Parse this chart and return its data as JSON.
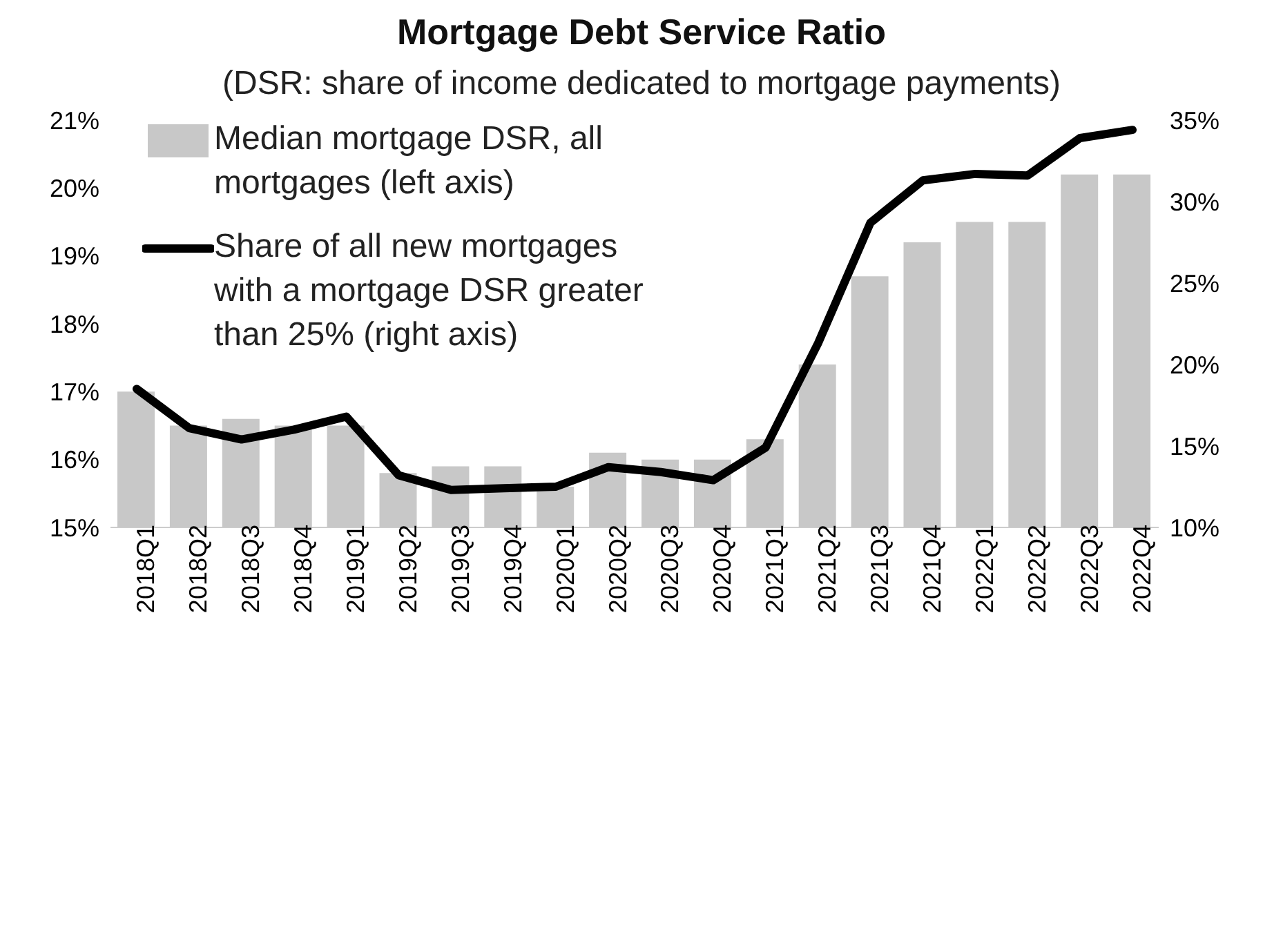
{
  "chart_data": {
    "type": "bar",
    "title": "Mortgage Debt Service Ratio",
    "subtitle": "(DSR: share of income dedicated to mortgage payments)",
    "categories": [
      "2018Q1",
      "2018Q2",
      "2018Q3",
      "2018Q4",
      "2019Q1",
      "2019Q2",
      "2019Q3",
      "2019Q4",
      "2020Q1",
      "2020Q2",
      "2020Q3",
      "2020Q4",
      "2021Q1",
      "2021Q2",
      "2021Q3",
      "2021Q4",
      "2022Q1",
      "2022Q2",
      "2022Q3",
      "2022Q4"
    ],
    "series": [
      {
        "name": "Median mortgage DSR, all mortgages (left axis)",
        "color": "#c8c8c8",
        "values": [
          17.0,
          16.5,
          16.6,
          16.5,
          16.5,
          15.8,
          15.9,
          15.9,
          15.6,
          16.1,
          16.0,
          16.0,
          16.3,
          17.4,
          18.7,
          19.2,
          19.5,
          19.5,
          20.2,
          20.2
        ]
      },
      {
        "name": "Share of all new mortgages with a mortgage DSR greater than 25% (right axis)",
        "type": "line",
        "axis": "y2",
        "color": "#000000",
        "values": [
          18.5,
          16.1,
          15.4,
          16.0,
          16.8,
          13.2,
          12.3,
          12.4,
          12.5,
          13.7,
          13.4,
          12.9,
          14.9,
          21.3,
          28.7,
          31.3,
          31.7,
          31.6,
          33.9,
          34.4
        ]
      }
    ],
    "ylim": [
      15,
      21
    ],
    "yticks": [
      {
        "value": 15,
        "label": "15%"
      },
      {
        "value": 16,
        "label": "16%"
      },
      {
        "value": 17,
        "label": "17%"
      },
      {
        "value": 18,
        "label": "18%"
      },
      {
        "value": 19,
        "label": "19%"
      },
      {
        "value": 20,
        "label": "20%"
      },
      {
        "value": 21,
        "label": "21%"
      }
    ],
    "y2lim": [
      10,
      35
    ],
    "y2ticks": [
      {
        "value": 10,
        "label": "10%"
      },
      {
        "value": 15,
        "label": "15%"
      },
      {
        "value": 20,
        "label": "20%"
      },
      {
        "value": 25,
        "label": "25%"
      },
      {
        "value": 30,
        "label": "30%"
      },
      {
        "value": 35,
        "label": "35%"
      }
    ],
    "grid": false,
    "legend": "top left",
    "marker": "none",
    "line_style": "solid"
  }
}
